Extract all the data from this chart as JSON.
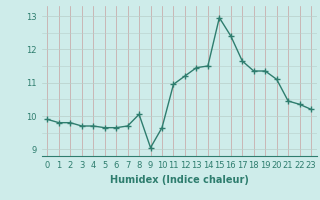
{
  "x": [
    0,
    1,
    2,
    3,
    4,
    5,
    6,
    7,
    8,
    9,
    10,
    11,
    12,
    13,
    14,
    15,
    16,
    17,
    18,
    19,
    20,
    21,
    22,
    23
  ],
  "y": [
    9.9,
    9.8,
    9.8,
    9.7,
    9.7,
    9.65,
    9.65,
    9.7,
    10.05,
    9.05,
    9.65,
    10.95,
    11.2,
    11.45,
    11.5,
    12.95,
    12.4,
    11.65,
    11.35,
    11.35,
    11.1,
    10.45,
    10.35,
    10.2
  ],
  "line_color": "#2e7d6e",
  "marker": "+",
  "marker_size": 4,
  "linewidth": 1.0,
  "bg_color": "#ceecea",
  "grid_color_v": "#c8a0a0",
  "grid_color_h": "#b8ceca",
  "xlabel": "Humidex (Indice chaleur)",
  "xlabel_fontsize": 7,
  "tick_color": "#2e7d6e",
  "tick_fontsize": 6,
  "ylim": [
    8.8,
    13.3
  ],
  "yticks": [
    9,
    10,
    11,
    12,
    13
  ],
  "xlim": [
    -0.5,
    23.5
  ]
}
